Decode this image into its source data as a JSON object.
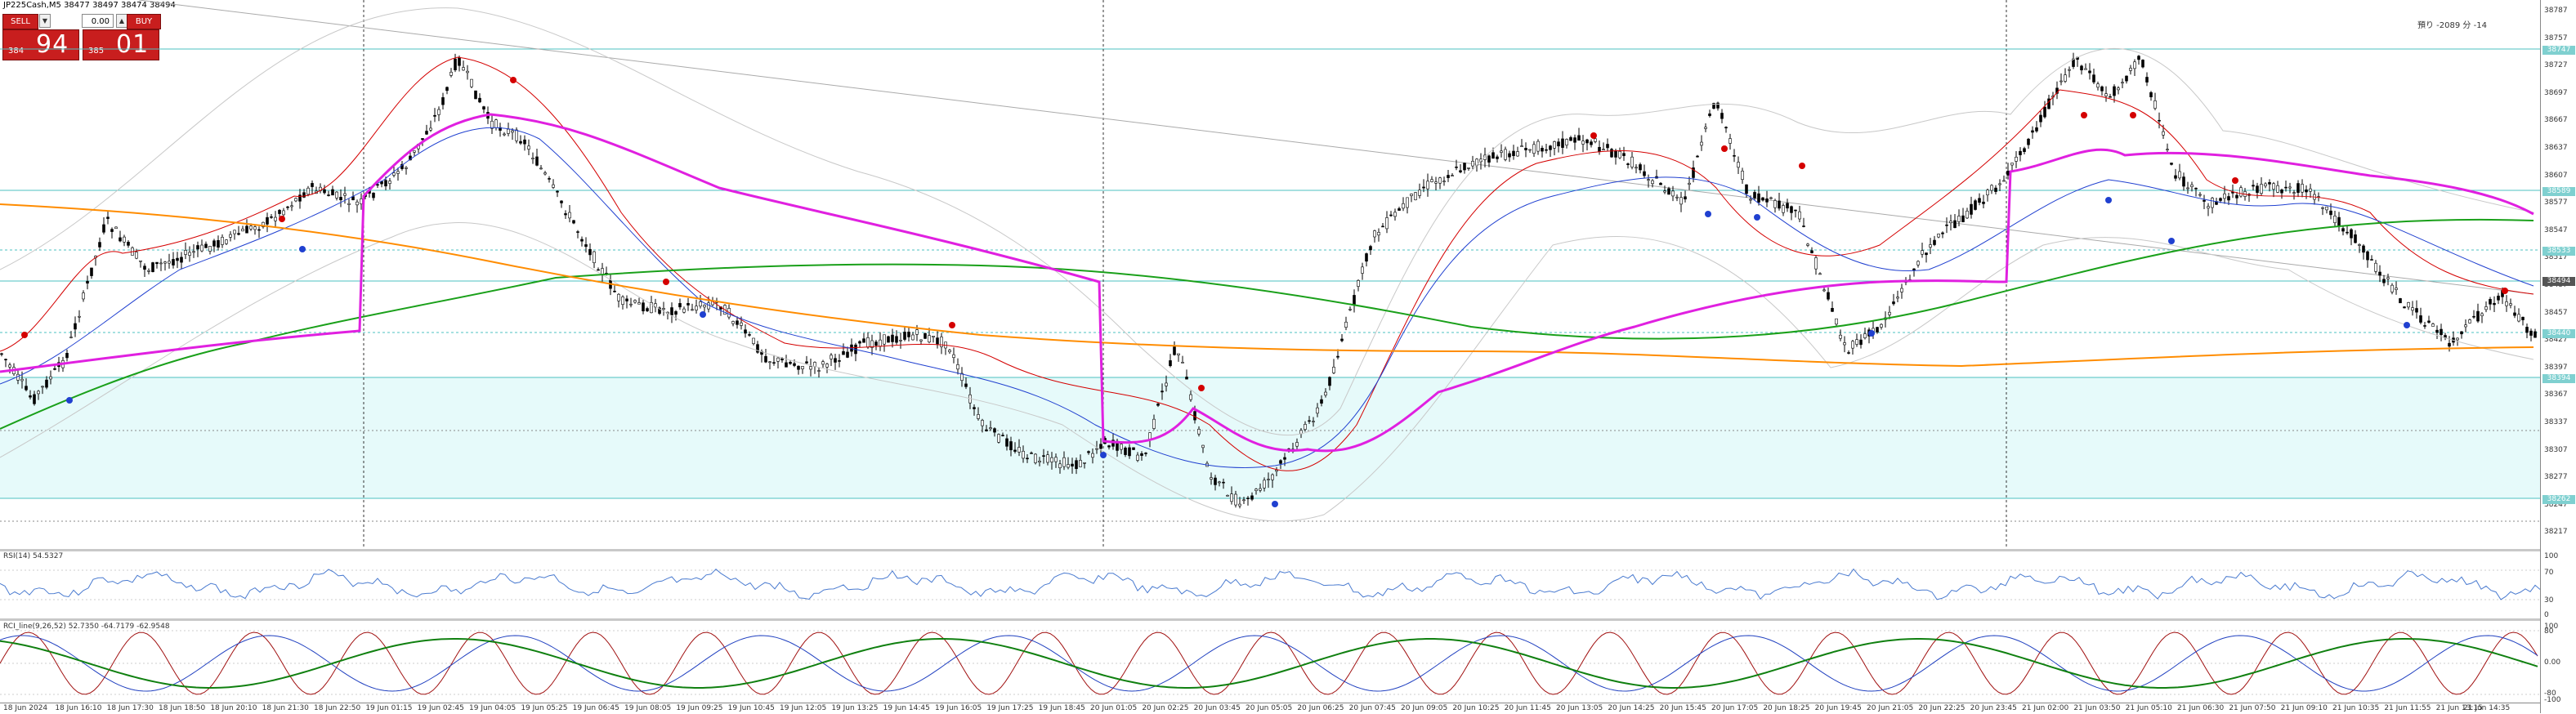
{
  "window": {
    "title": "JP225Cash,M5  38477 38497 38474 38494"
  },
  "trade_panel": {
    "sell_label": "SELL",
    "buy_label": "BUY",
    "volume_value": "0.00",
    "sell_price_small": "384",
    "sell_price_big": "94",
    "buy_price_small": "385",
    "buy_price_big": "01",
    "sell_color": "#c81e1e"
  },
  "corner_text": "預り -2089 分 -14",
  "price_axis": {
    "ticks": [
      "38787",
      "38757",
      "38727",
      "38697",
      "38667",
      "38637",
      "38607",
      "38577",
      "38547",
      "38517",
      "38487",
      "38457",
      "38427",
      "38397",
      "38367",
      "38337",
      "38307",
      "38277",
      "38247",
      "38217"
    ],
    "highlighted": [
      "38747",
      "38589",
      "38533",
      "38484",
      "38440",
      "38394",
      "38262"
    ],
    "current_price": "38494"
  },
  "rsi": {
    "label": "RSI(14) 54.5327",
    "ticks": [
      "100",
      "70",
      "30",
      "0"
    ]
  },
  "rci": {
    "label": "RCI_line(9,26,52) 52.7350  -64.7179  -62.9548",
    "ticks": [
      "100",
      "80",
      "0.00",
      "-80",
      "-100"
    ]
  },
  "date_axis": [
    "18 Jun 2024",
    "18 Jun 16:10",
    "18 Jun 17:30",
    "18 Jun 18:50",
    "18 Jun 20:10",
    "18 Jun 21:30",
    "18 Jun 22:50",
    "19 Jun 01:15",
    "19 Jun 02:45",
    "19 Jun 04:05",
    "19 Jun 05:25",
    "19 Jun 06:45",
    "19 Jun 08:05",
    "19 Jun 09:25",
    "19 Jun 10:45",
    "19 Jun 12:05",
    "19 Jun 13:25",
    "19 Jun 14:45",
    "19 Jun 16:05",
    "19 Jun 17:25",
    "19 Jun 18:45",
    "20 Jun 01:05",
    "20 Jun 02:25",
    "20 Jun 03:45",
    "20 Jun 05:05",
    "20 Jun 06:25",
    "20 Jun 07:45",
    "20 Jun 09:05",
    "20 Jun 10:25",
    "20 Jun 11:45",
    "20 Jun 13:05",
    "20 Jun 14:25",
    "20 Jun 15:45",
    "20 Jun 17:05",
    "20 Jun 18:25",
    "20 Jun 19:45",
    "20 Jun 21:05",
    "20 Jun 22:25",
    "20 Jun 23:45",
    "21 Jun 02:00",
    "21 Jun 03:50",
    "21 Jun 05:10",
    "21 Jun 06:30",
    "21 Jun 07:50",
    "21 Jun 09:10",
    "21 Jun 10:35",
    "21 Jun 11:55",
    "21 Jun 13:15",
    "21 Jun 14:35"
  ],
  "colors": {
    "sma_fast": "#d40000",
    "sma_mid": "#2040d0",
    "sma_long": "#1aa01a",
    "sma_longer": "#ff8c00",
    "vwap": "#e020e0",
    "band_fill": "#e6fafa",
    "band_line": "#4cc0c0",
    "rsi_line": "#4a7bd0",
    "rci_short": "#a01010",
    "rci_mid": "#2040c0",
    "rci_long": "#108010"
  }
}
